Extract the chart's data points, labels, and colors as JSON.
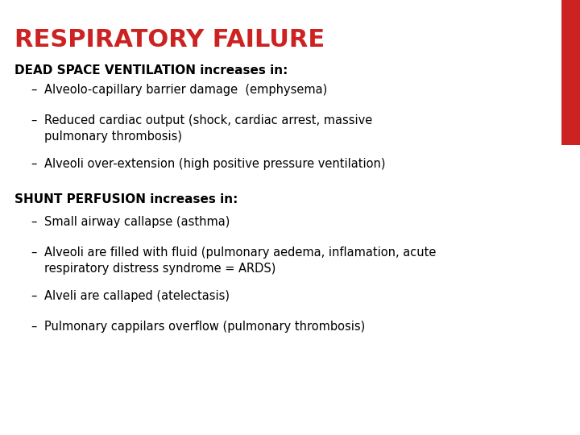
{
  "title": "RESPIRATORY FAILURE",
  "title_color": "#cc2222",
  "title_fontsize": 22,
  "background_color": "#ffffff",
  "section1_heading": "DEAD SPACE VENTILATION increases in:",
  "section1_bullets": [
    "Alveolo-capillary barrier damage  (emphysema)",
    "Reduced cardiac output (shock, cardiac arrest, massive\npulmonary thrombosis)",
    "Alveoli over-extension (high positive pressure ventilation)"
  ],
  "section2_heading": "SHUNT PERFUSION increases in:",
  "section2_bullets": [
    "Small airway callapse (asthma)",
    "Alveoli are filled with fluid (pulmonary aedema, inflamation, acute\nrespiratory distress syndrome = ARDS)",
    "Alveli are callaped (atelectasis)",
    "Pulmonary cappilars overflow (pulmonary thrombosis)"
  ],
  "heading_fontsize": 11,
  "bullet_fontsize": 10.5,
  "heading_color": "#000000",
  "bullet_color": "#000000",
  "sidebar_color": "#cc2222"
}
